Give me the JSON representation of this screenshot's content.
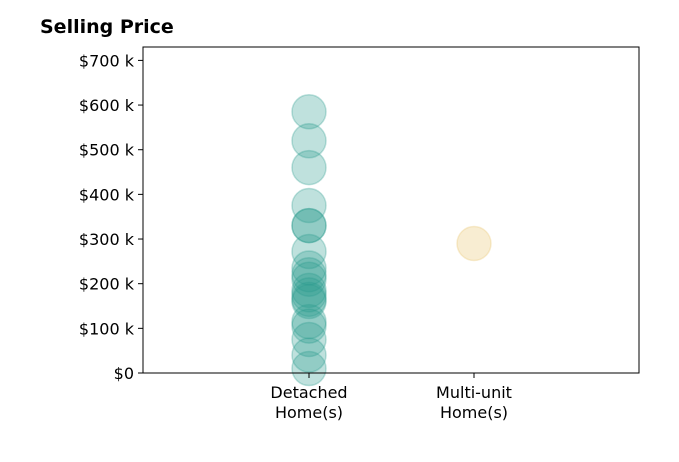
{
  "chart_data": {
    "type": "scatter",
    "title": "Selling Price",
    "xlabel": "",
    "ylabel": "",
    "categories": [
      "Detached\nHome(s)",
      "Multi-unit\nHome(s)"
    ],
    "y_ticks": [
      {
        "value": 0,
        "label": "$0"
      },
      {
        "value": 100000,
        "label": "$100 k"
      },
      {
        "value": 200000,
        "label": "$200 k"
      },
      {
        "value": 300000,
        "label": "$300 k"
      },
      {
        "value": 400000,
        "label": "$400 k"
      },
      {
        "value": 500000,
        "label": "$500 k"
      },
      {
        "value": 600000,
        "label": "$600 k"
      },
      {
        "value": 700000,
        "label": "$700 k"
      }
    ],
    "ylim": [
      0,
      730000
    ],
    "grid": false,
    "series": [
      {
        "category_index": 0,
        "color": "#2a9d8f",
        "values": [
          585000,
          520000,
          460000,
          375000,
          330000,
          330000,
          272000,
          235000,
          220000,
          210000,
          185000,
          175000,
          165000,
          160000,
          115000,
          105000,
          75000,
          40000,
          10000
        ]
      },
      {
        "category_index": 1,
        "color": "#e9c46a",
        "values": [
          290000
        ]
      }
    ]
  }
}
